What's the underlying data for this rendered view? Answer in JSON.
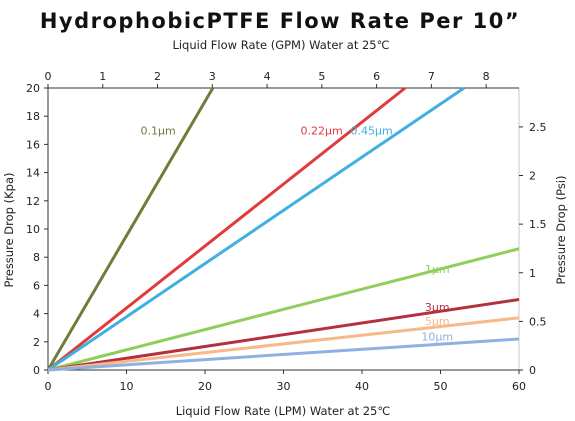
{
  "chart_data": {
    "type": "line",
    "title": "HydrophobicPTFE Flow Rate Per 10”",
    "x_top_label": "Liquid Flow Rate (GPM) Water at 25℃",
    "xlabel": "Liquid Flow Rate (LPM) Water at 25℃",
    "ylabel_left": "Pressure Drop (Kpa)",
    "ylabel_right": "Pressure Drop (Psi)",
    "xlim": [
      0,
      60
    ],
    "ylim": [
      0,
      20
    ],
    "x_top_lim": [
      0,
      8.6
    ],
    "y_right_lim": [
      0,
      2.9
    ],
    "x_ticks": [
      "0",
      "10",
      "20",
      "30",
      "40",
      "50",
      "60"
    ],
    "y_ticks": [
      "0",
      "2",
      "4",
      "6",
      "8",
      "10",
      "12",
      "14",
      "16",
      "18",
      "20"
    ],
    "x_top_ticks": [
      "0",
      "1",
      "2",
      "3",
      "4",
      "5",
      "6",
      "7",
      "8"
    ],
    "y_right_ticks": [
      "0",
      "0.5",
      "1",
      "1.5",
      "2",
      "2.5"
    ],
    "grid": false,
    "series": [
      {
        "name": "0.1µm",
        "color": "#6b7f3a",
        "x": [
          0,
          21
        ],
        "y": [
          0,
          20
        ]
      },
      {
        "name": "0.22µm",
        "color": "#e03a3a",
        "x": [
          0,
          45.5
        ],
        "y": [
          0,
          20
        ]
      },
      {
        "name": "0.45µm",
        "color": "#3fb0e0",
        "x": [
          0,
          53
        ],
        "y": [
          0,
          20
        ]
      },
      {
        "name": "1µm",
        "color": "#8fce5a",
        "x": [
          0,
          60
        ],
        "y": [
          0,
          8.6
        ]
      },
      {
        "name": "3µm",
        "color": "#b5303f",
        "x": [
          0,
          60
        ],
        "y": [
          0,
          5.0
        ]
      },
      {
        "name": "5µm",
        "color": "#f6b98a",
        "x": [
          0,
          60
        ],
        "y": [
          0,
          3.7
        ]
      },
      {
        "name": "10µm",
        "color": "#8fb0e0",
        "x": [
          0,
          60
        ],
        "y": [
          0,
          2.2
        ]
      }
    ]
  }
}
